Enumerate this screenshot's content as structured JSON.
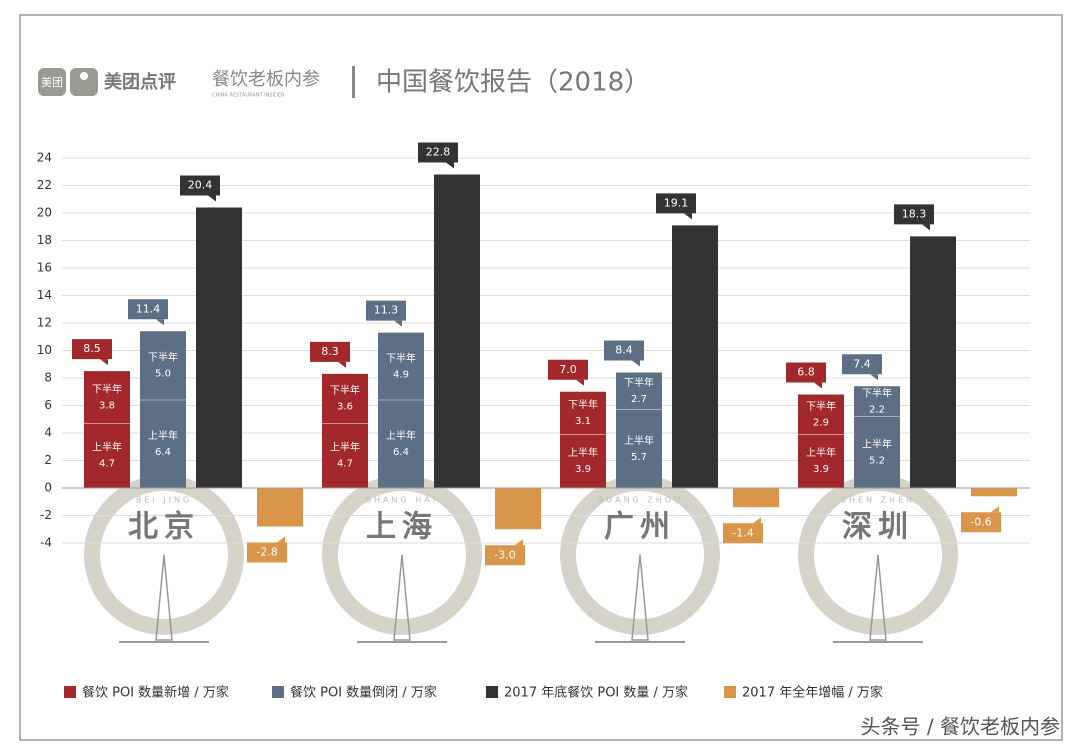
{
  "header": {
    "logo_badge": "美团",
    "brand": "美团点评",
    "partner": "餐饮老板内参",
    "partner_en": "CHINA RESTAURANT INSIDER",
    "title": "中国餐饮报告（2018）"
  },
  "chart_data": {
    "type": "bar",
    "categories": [
      "北京",
      "上海",
      "广州",
      "深圳"
    ],
    "city_pinyin": [
      "BEI JING",
      "SHANG HAI",
      "GUANG ZHOU",
      "SHEN ZHEN"
    ],
    "ylim": [
      -4,
      24
    ],
    "yticks": [
      -4,
      -2,
      0,
      2,
      4,
      6,
      8,
      10,
      12,
      14,
      16,
      18,
      20,
      22,
      24
    ],
    "grid": true,
    "series": [
      {
        "name": "餐饮 POI 数量新增 / 万家",
        "color": "#a3282b",
        "stacks": [
          {
            "label": "上半年",
            "values": [
              4.7,
              4.7,
              3.9,
              3.9
            ],
            "value_labels": [
              "4.7",
              "4.7",
              "3.9",
              "3.9"
            ]
          },
          {
            "label": "下半年",
            "values": [
              3.8,
              3.6,
              3.1,
              2.9
            ],
            "value_labels": [
              "3.8",
              "3.6",
              "3.1",
              "2.9"
            ]
          }
        ],
        "totals": [
          8.5,
          8.3,
          7.0,
          6.8
        ],
        "total_labels": [
          "8.5",
          "8.3",
          "7.0",
          "6.8"
        ]
      },
      {
        "name": "餐饮 POI 数量倒闭 / 万家",
        "color": "#5d6f84",
        "stacks": [
          {
            "label": "上半年",
            "values": [
              6.4,
              6.4,
              5.7,
              5.2
            ],
            "value_labels": [
              "6.4",
              "6.4",
              "5.7",
              "5.2"
            ]
          },
          {
            "label": "下半年",
            "values": [
              5.0,
              4.9,
              2.7,
              2.2
            ],
            "value_labels": [
              "5.0",
              "4.9",
              "2.7",
              "2.2"
            ]
          }
        ],
        "totals": [
          11.4,
          11.3,
          8.4,
          7.4
        ],
        "total_labels": [
          "11.4",
          "11.3",
          "8.4",
          "7.4"
        ]
      },
      {
        "name": "2017 年底餐饮 POI 数量 / 万家",
        "color": "#333333",
        "values": [
          20.4,
          22.8,
          19.1,
          18.3
        ],
        "value_labels": [
          "20.4",
          "22.8",
          "19.1",
          "18.3"
        ]
      },
      {
        "name": "2017 年全年增幅 / 万家",
        "color": "#d9954a",
        "values": [
          -2.8,
          -3.0,
          -1.4,
          -0.6
        ],
        "value_labels": [
          "-2.8",
          "-3.0",
          "-1.4",
          "-0.6"
        ]
      }
    ]
  },
  "watermark": "头条号 / 餐饮老板内参"
}
